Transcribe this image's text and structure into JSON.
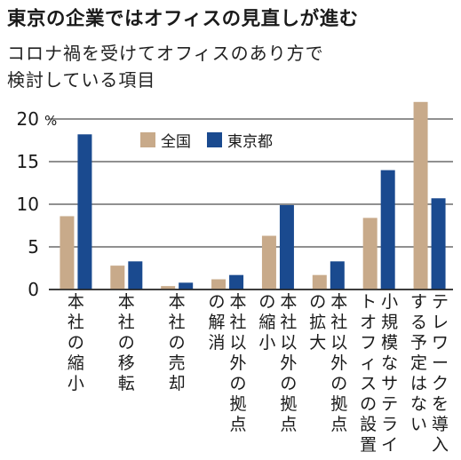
{
  "title": "東京の企業ではオフィスの見直しが進む",
  "subtitle_lines": [
    "コロナ禍を受けてオフィスのあり方で",
    "検討している項目"
  ],
  "colors": {
    "national": "#c8aa8a",
    "tokyo": "#1a4a8f",
    "grid": "#222222"
  },
  "chart_data": {
    "type": "bar",
    "title": "東京の企業ではオフィスの見直しが進む",
    "subtitle": "コロナ禍を受けてオフィスのあり方で検討している項目",
    "ylabel": "",
    "yunit": "%",
    "ylim": [
      0,
      22
    ],
    "yticks": [
      0,
      5,
      10,
      15,
      20
    ],
    "grid": true,
    "legend_position": "top-left",
    "categories": [
      [
        "本社の縮小"
      ],
      [
        "本社の移転"
      ],
      [
        "本社の売却"
      ],
      [
        "本社以外の拠点",
        "の解消"
      ],
      [
        "本社以外の拠点",
        "の縮小"
      ],
      [
        "本社以外の拠点",
        "の拡大"
      ],
      [
        "小規模なサテライ",
        "トオフィスの設置"
      ],
      [
        "テレワークを導入",
        "する予定はない"
      ]
    ],
    "series": [
      {
        "name": "全国",
        "values": [
          8.6,
          2.8,
          0.4,
          1.2,
          6.3,
          1.7,
          8.4,
          22.0
        ]
      },
      {
        "name": "東京都",
        "values": [
          18.2,
          3.3,
          0.8,
          1.7,
          9.9,
          3.3,
          14.0,
          10.7
        ]
      }
    ]
  }
}
